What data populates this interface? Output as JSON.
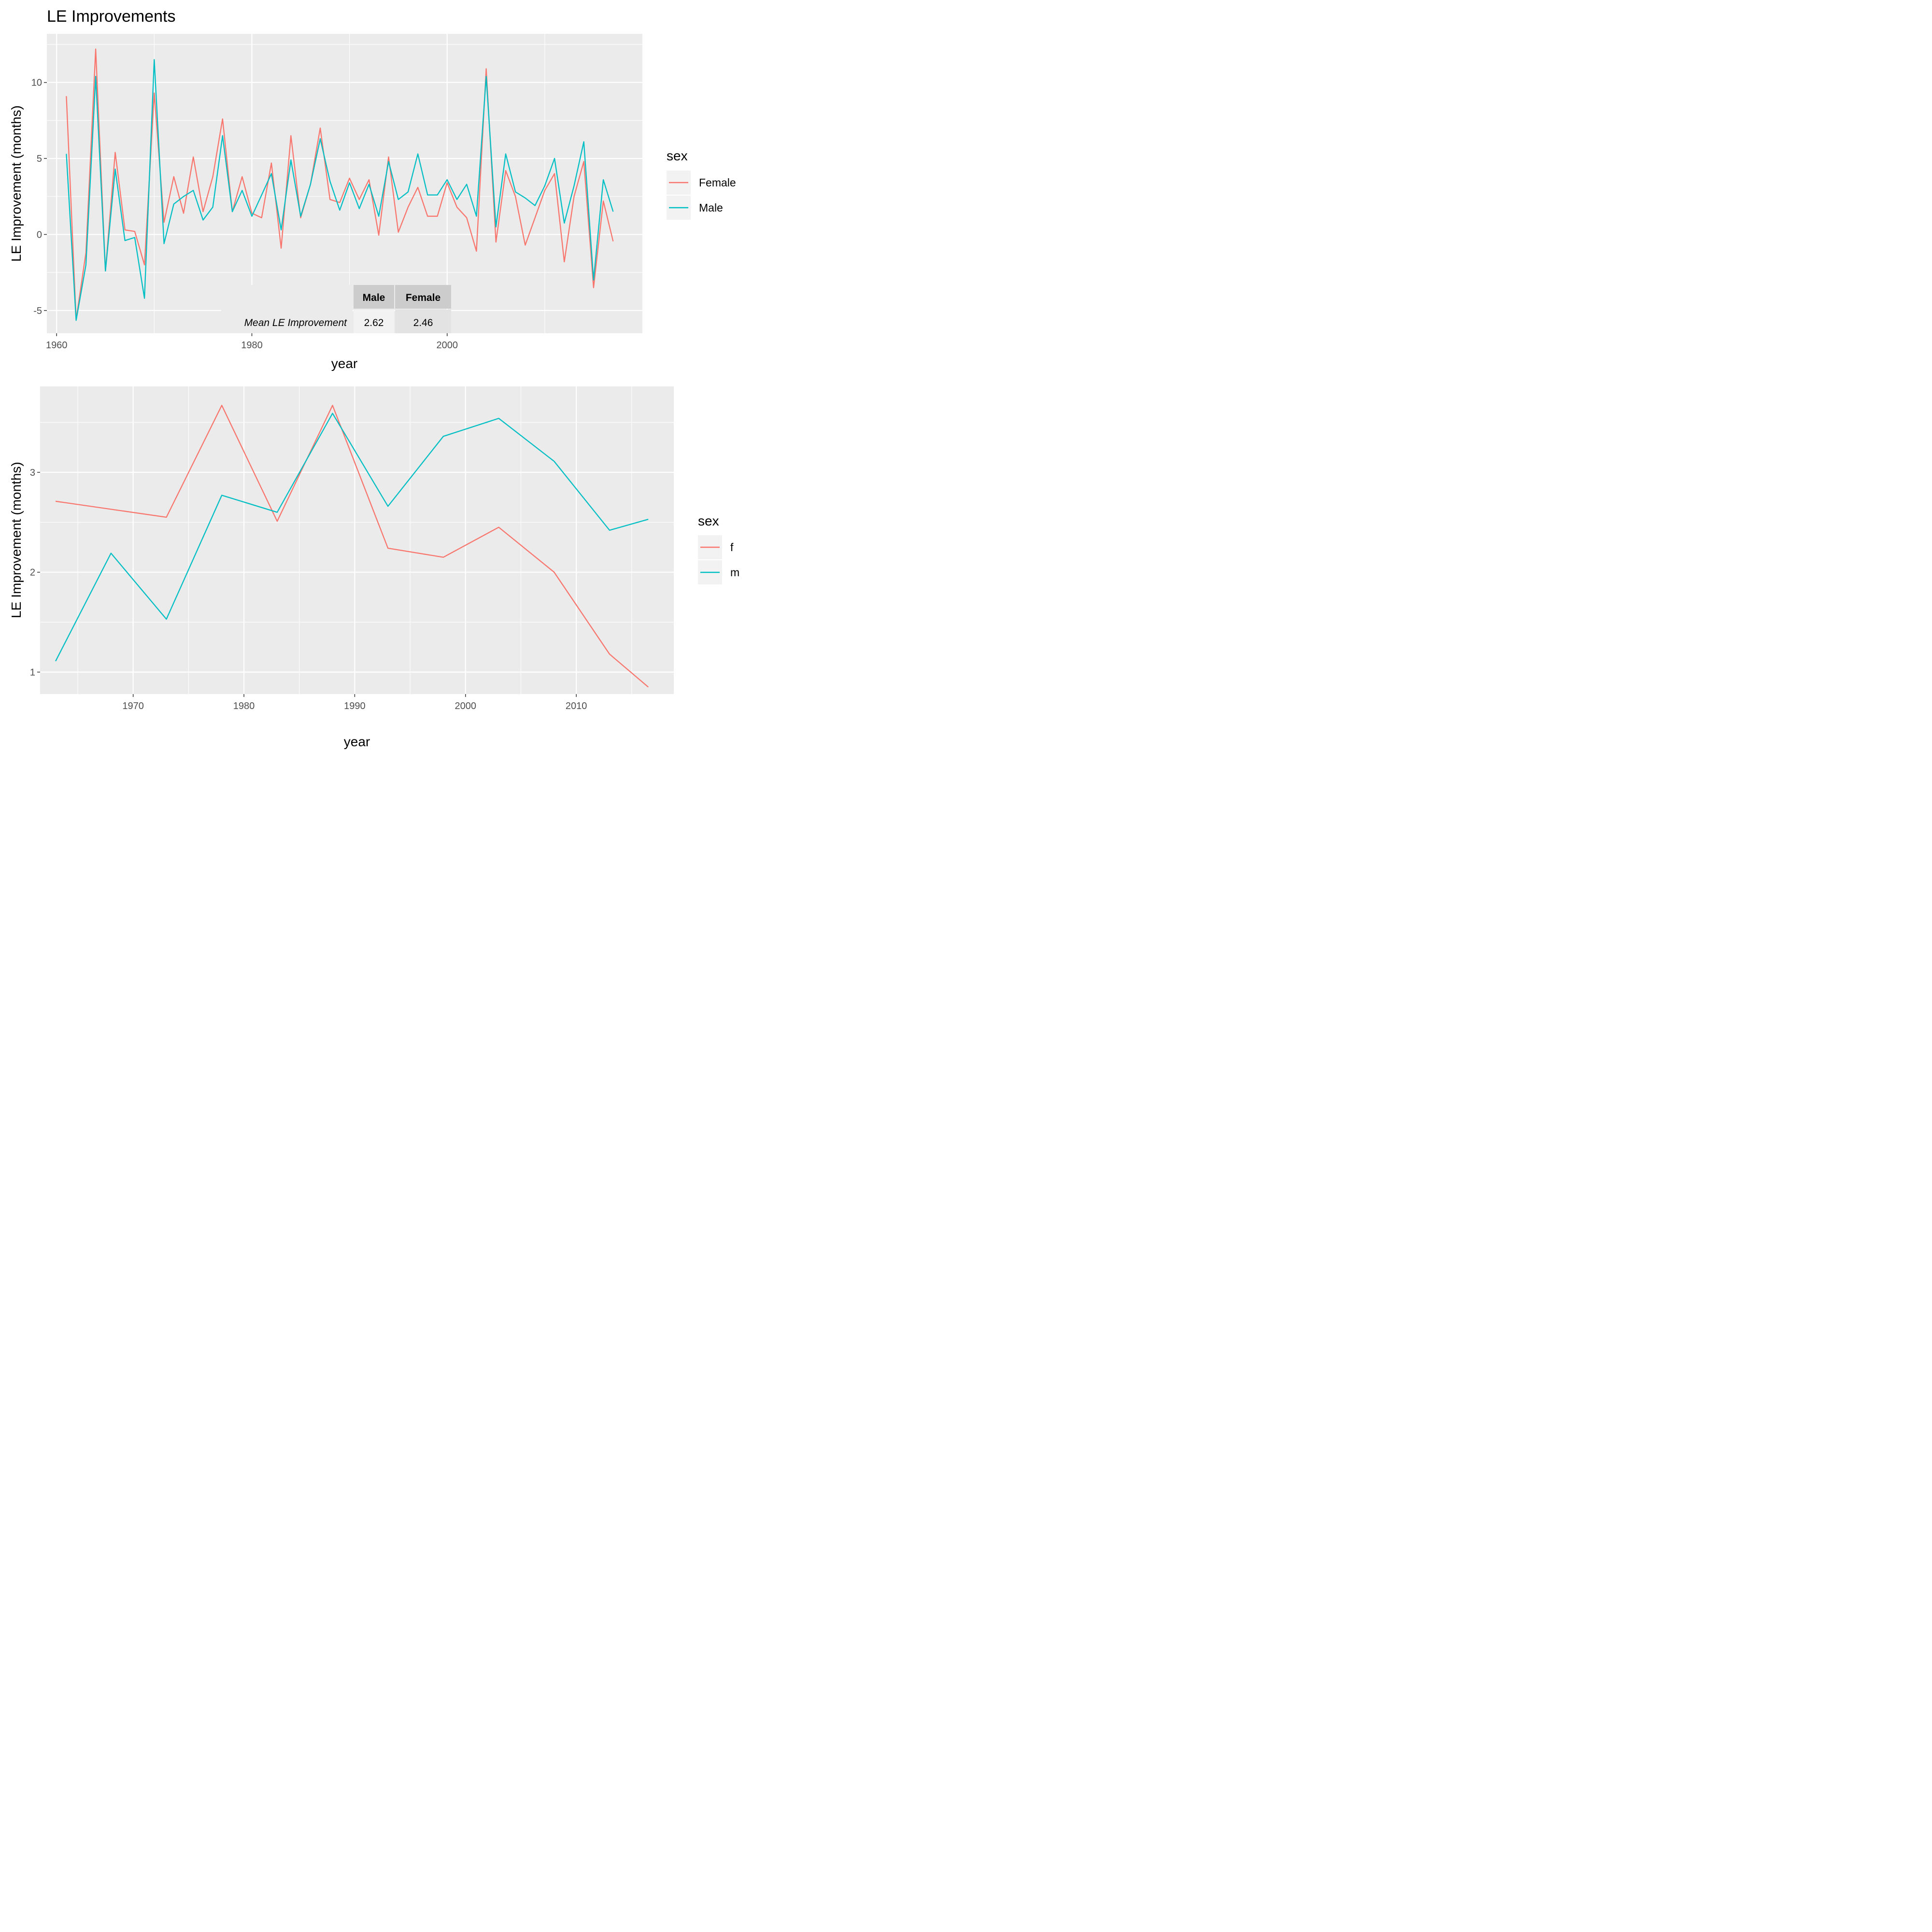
{
  "chart_data": [
    {
      "type": "line",
      "title": "LE Improvements",
      "xlabel": "year",
      "ylabel": "LE Improvement (months)",
      "xlim": [
        1959,
        2020
      ],
      "ylim": [
        -6.5,
        13.2
      ],
      "x_ticks": [
        1960,
        1980,
        2000
      ],
      "y_ticks": [
        -5,
        0,
        5,
        10
      ],
      "grid": true,
      "legend": {
        "title": "sex",
        "position": "right",
        "entries": [
          "Female",
          "Male"
        ]
      },
      "x": [
        1961,
        1962,
        1963,
        1964,
        1965,
        1966,
        1967,
        1968,
        1969,
        1970,
        1971,
        1972,
        1973,
        1974,
        1975,
        1976,
        1977,
        1978,
        1979,
        1980,
        1981,
        1982,
        1983,
        1984,
        1985,
        1986,
        1987,
        1988,
        1989,
        1990,
        1991,
        1992,
        1993,
        1994,
        1995,
        1996,
        1997,
        1998,
        1999,
        2000,
        2001,
        2002,
        2003,
        2004,
        2005,
        2006,
        2007,
        2008,
        2009,
        2010,
        2011,
        2012,
        2013,
        2014,
        2015,
        2016,
        2017
      ],
      "series": [
        {
          "name": "Female",
          "color": "#F8766D",
          "values": [
            9.1,
            -5.6,
            -1.2,
            12.2,
            -2.4,
            5.4,
            0.3,
            0.2,
            -2.0,
            9.3,
            0.8,
            3.8,
            1.4,
            5.1,
            1.5,
            3.8,
            7.6,
            1.5,
            3.8,
            1.4,
            1.1,
            4.7,
            -0.9,
            6.5,
            1.1,
            3.3,
            7.0,
            2.3,
            2.1,
            3.7,
            2.3,
            3.6,
            -0.05,
            5.1,
            0.15,
            1.8,
            3.1,
            1.2,
            1.2,
            3.4,
            1.8,
            1.1,
            -1.1,
            10.9,
            -0.5,
            4.2,
            2.5,
            -0.7,
            1.1,
            2.9,
            4.0,
            -1.8,
            2.5,
            4.8,
            -3.5,
            2.2,
            -0.45
          ]
        },
        {
          "name": "Male",
          "color": "#00BFC4",
          "values": [
            5.3,
            -5.65,
            -2.0,
            10.4,
            -2.4,
            4.3,
            -0.4,
            -0.2,
            -4.2,
            11.5,
            -0.6,
            2.0,
            2.5,
            2.9,
            0.95,
            1.8,
            6.5,
            1.5,
            2.9,
            1.2,
            2.6,
            4.0,
            0.3,
            4.9,
            1.2,
            3.3,
            6.3,
            3.5,
            1.6,
            3.4,
            1.7,
            3.3,
            1.2,
            4.8,
            2.3,
            2.8,
            5.3,
            2.6,
            2.6,
            3.6,
            2.3,
            3.3,
            1.2,
            10.4,
            0.5,
            5.3,
            2.8,
            2.4,
            1.9,
            3.2,
            5.0,
            0.75,
            3.2,
            6.1,
            -3.0,
            3.6,
            1.5
          ]
        }
      ],
      "table": {
        "col_headers": [
          "Male",
          "Female"
        ],
        "row_label": "Mean LE Improvement",
        "values": [
          "2.62",
          "2.46"
        ]
      }
    },
    {
      "type": "line",
      "title": "",
      "xlabel": "year",
      "ylabel": "LE Improvement (months)",
      "xlim": [
        1961.6,
        2018.8
      ],
      "ylim": [
        0.78,
        3.86
      ],
      "x_ticks": [
        1970,
        1980,
        1990,
        2000,
        2010
      ],
      "y_ticks": [
        1,
        2,
        3
      ],
      "grid": true,
      "legend": {
        "title": "sex",
        "position": "right",
        "entries": [
          "f",
          "m"
        ]
      },
      "x": [
        1963,
        1968,
        1973,
        1978,
        1983,
        1988,
        1993,
        1998,
        2003,
        2008,
        2013,
        2016.5
      ],
      "series": [
        {
          "name": "f",
          "color": "#F8766D",
          "values": [
            2.71,
            null,
            2.55,
            3.67,
            2.51,
            3.67,
            2.24,
            2.15,
            2.45,
            2.0,
            1.18,
            0.85
          ]
        },
        {
          "name": "m",
          "color": "#00BFC4",
          "values": [
            1.11,
            2.19,
            1.53,
            2.77,
            2.6,
            3.59,
            2.66,
            3.36,
            3.54,
            3.11,
            2.42,
            2.53
          ]
        }
      ]
    }
  ]
}
